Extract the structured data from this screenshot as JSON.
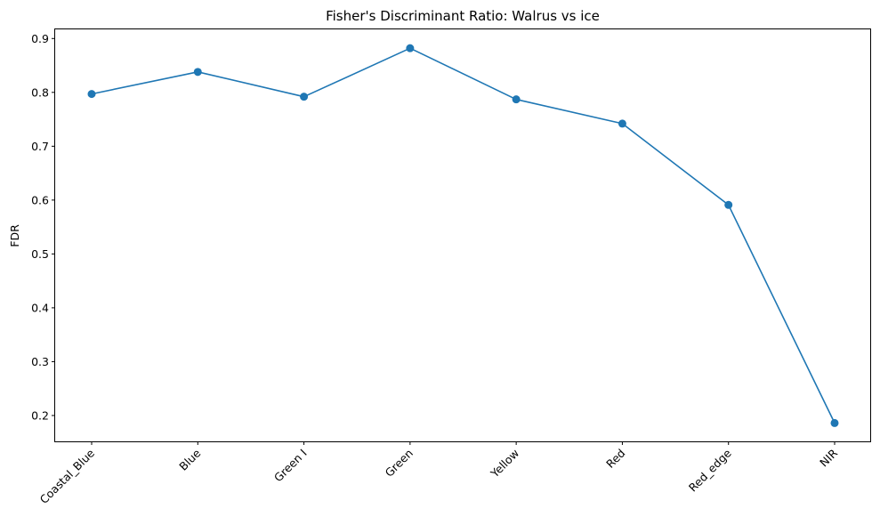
{
  "chart_data": {
    "type": "line",
    "title": "Fisher's Discriminant Ratio: Walrus vs ice",
    "xlabel": "",
    "ylabel": "FDR",
    "categories": [
      "Coastal_Blue",
      "Blue",
      "Green I",
      "Green",
      "Yellow",
      "Red",
      "Red_edge",
      "NIR"
    ],
    "series": [
      {
        "values": [
          0.797,
          0.838,
          0.792,
          0.882,
          0.787,
          0.742,
          0.591,
          0.186
        ],
        "color": "#1f77b4",
        "marker": "circle"
      }
    ],
    "yticks": [
      "0.2",
      "0.3",
      "0.4",
      "0.5",
      "0.6",
      "0.7",
      "0.8",
      "0.9"
    ],
    "ylim": [
      0.152,
      0.917
    ],
    "grid": false,
    "xtick_rotation": 45
  }
}
